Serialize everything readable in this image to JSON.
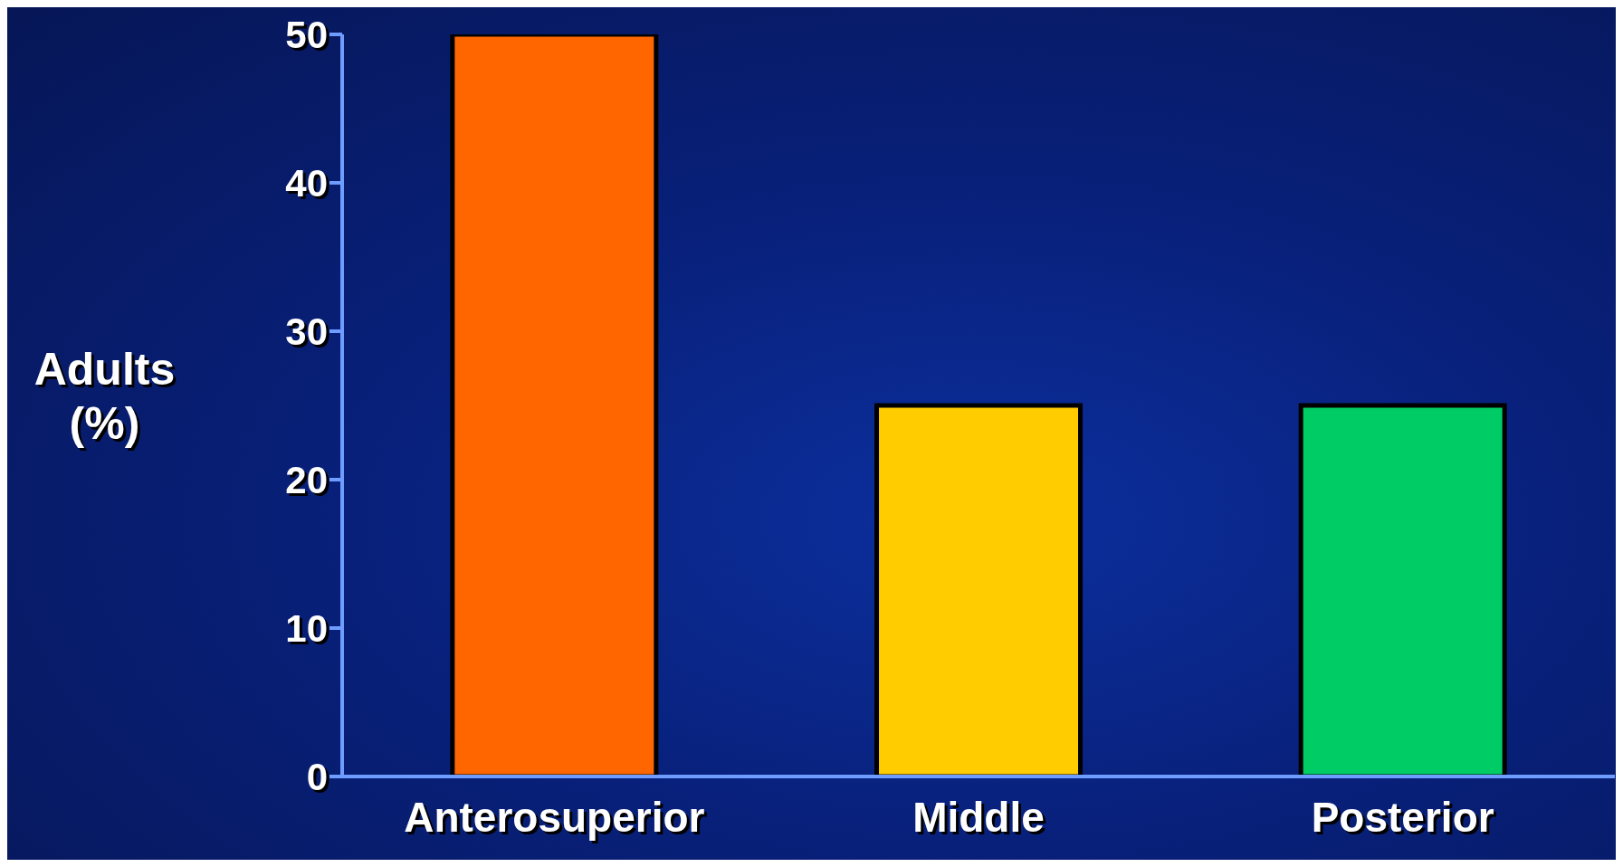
{
  "chart_data": {
    "type": "bar",
    "ylabel": "Adults (%)",
    "categories": [
      "Anterosuperior",
      "Middle",
      "Posterior"
    ],
    "values": [
      50,
      25,
      25
    ],
    "colors": [
      "#ff6600",
      "#ffcc00",
      "#00cc66"
    ],
    "ylim": [
      0,
      50
    ],
    "yticks": [
      0,
      10,
      20,
      30,
      40,
      50
    ],
    "grid": false
  }
}
